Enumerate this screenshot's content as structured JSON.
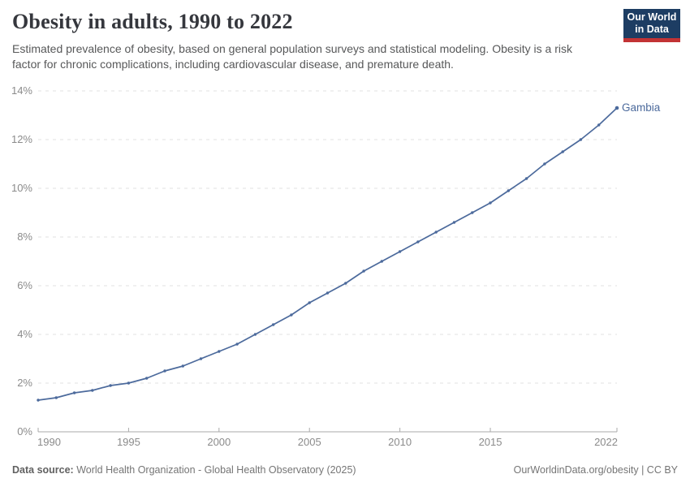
{
  "header": {
    "title": "Obesity in adults, 1990 to 2022",
    "subtitle": "Estimated prevalence of obesity, based on general population surveys and statistical modeling. Obesity is a risk factor for chronic complications, including cardiovascular disease, and premature death.",
    "logo": {
      "line1": "Our World",
      "line2": "in Data",
      "bg_color": "#1d3d63",
      "accent_color": "#c23335"
    }
  },
  "chart_data": {
    "type": "line",
    "title": "Obesity in adults, 1990 to 2022",
    "xlabel": "",
    "ylabel": "",
    "xlim": [
      1990,
      2022
    ],
    "ylim": [
      0,
      14
    ],
    "grid": "horizontal-dashed",
    "legend_position": "end-of-line",
    "xticks": [
      1990,
      1995,
      2000,
      2005,
      2010,
      2015,
      2022
    ],
    "ytick_values": [
      0,
      2,
      4,
      6,
      8,
      10,
      12,
      14
    ],
    "ytick_labels": [
      "0%",
      "2%",
      "4%",
      "6%",
      "8%",
      "10%",
      "12%",
      "14%"
    ],
    "series": [
      {
        "name": "Gambia",
        "color": "#4c6a9c",
        "x": [
          1990,
          1991,
          1992,
          1993,
          1994,
          1995,
          1996,
          1997,
          1998,
          1999,
          2000,
          2001,
          2002,
          2003,
          2004,
          2005,
          2006,
          2007,
          2008,
          2009,
          2010,
          2011,
          2012,
          2013,
          2014,
          2015,
          2016,
          2017,
          2018,
          2019,
          2020,
          2021,
          2022
        ],
        "values": [
          1.3,
          1.4,
          1.6,
          1.7,
          1.9,
          2.0,
          2.2,
          2.5,
          2.7,
          3.0,
          3.3,
          3.6,
          4.0,
          4.4,
          4.8,
          5.3,
          5.7,
          6.1,
          6.6,
          7.0,
          7.4,
          7.8,
          8.2,
          8.6,
          9.0,
          9.4,
          9.9,
          10.4,
          11.0,
          11.5,
          12.0,
          12.6,
          13.3
        ]
      }
    ]
  },
  "footer": {
    "source_label": "Data source:",
    "source_text": " World Health Organization - Global Health Observatory (2025)",
    "credit": "OurWorldinData.org/obesity | CC BY"
  }
}
